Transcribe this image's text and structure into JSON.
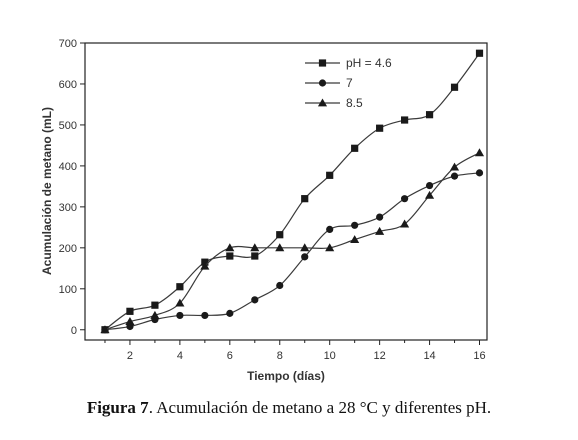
{
  "chart_data": {
    "type": "line",
    "xlabel": "Tiempo (días)",
    "ylabel": "Acumulación de metano (mL)",
    "xlim": [
      0.2,
      16.3
    ],
    "ylim": [
      -25,
      700
    ],
    "xticks": [
      2,
      4,
      6,
      8,
      10,
      12,
      14,
      16
    ],
    "yticks": [
      0,
      100,
      200,
      300,
      400,
      500,
      600,
      700
    ],
    "legend_position": "top-right",
    "grid": false,
    "series": [
      {
        "name": "pH = 4.6",
        "marker": "square",
        "x": [
          1,
          2,
          3,
          4,
          5,
          6,
          7,
          8,
          9,
          10,
          11,
          12,
          13,
          14,
          15,
          16
        ],
        "y": [
          0,
          45,
          60,
          105,
          165,
          180,
          180,
          232,
          320,
          377,
          443,
          492,
          512,
          525,
          592,
          675
        ]
      },
      {
        "name": "7",
        "marker": "circle",
        "x": [
          1,
          2,
          3,
          4,
          5,
          6,
          7,
          8,
          9,
          10,
          11,
          12,
          13,
          14,
          15,
          16
        ],
        "y": [
          0,
          8,
          25,
          35,
          35,
          40,
          73,
          108,
          178,
          245,
          255,
          275,
          320,
          352,
          375,
          383
        ]
      },
      {
        "name": "8.5",
        "marker": "triangle",
        "x": [
          1,
          2,
          3,
          4,
          5,
          6,
          7,
          8,
          9,
          10,
          11,
          12,
          13,
          14,
          15,
          16
        ],
        "y": [
          0,
          20,
          35,
          65,
          155,
          200,
          200,
          200,
          200,
          200,
          220,
          240,
          258,
          328,
          397,
          432
        ]
      }
    ]
  },
  "caption": {
    "label": "Figura 7",
    "text": ". Acumulación de metano a 28 °C y diferentes pH."
  }
}
